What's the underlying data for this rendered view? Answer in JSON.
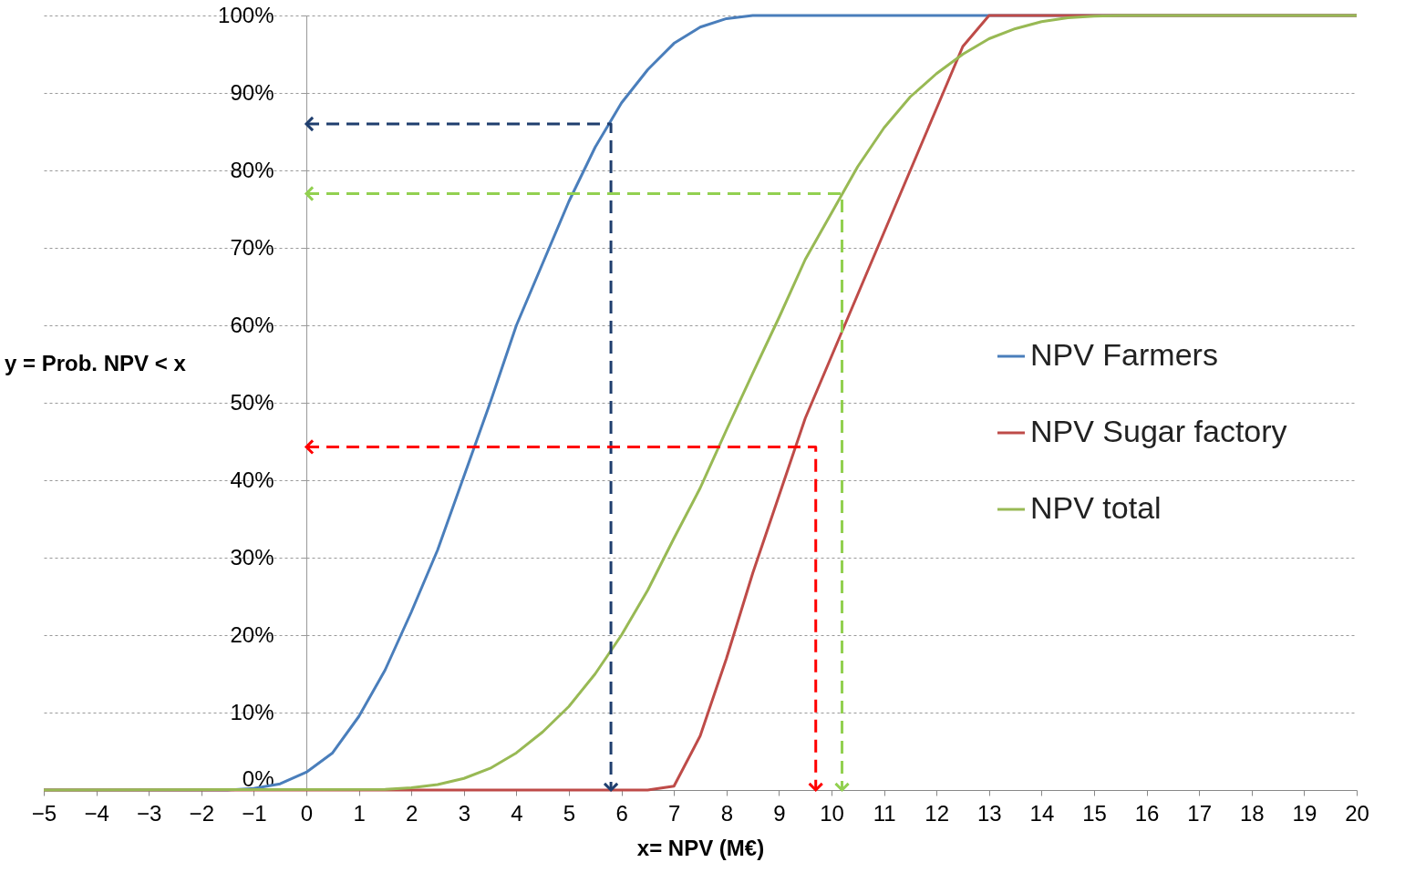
{
  "chart_data": {
    "type": "line",
    "xlabel": "x= NPV (M€)",
    "ylabel": "y = Prob. NPV < x",
    "xlim": [
      -5,
      20
    ],
    "ylim": [
      0,
      100
    ],
    "xticks": [
      -5,
      -4,
      -3,
      -2,
      -1,
      0,
      1,
      2,
      3,
      4,
      5,
      6,
      7,
      8,
      9,
      10,
      11,
      12,
      13,
      14,
      15,
      16,
      17,
      18,
      19,
      20
    ],
    "yticks": [
      {
        "value": 0,
        "label": "0%"
      },
      {
        "value": 10,
        "label": "10%"
      },
      {
        "value": 20,
        "label": "20%"
      },
      {
        "value": 30,
        "label": "30%"
      },
      {
        "value": 40,
        "label": "40%"
      },
      {
        "value": 50,
        "label": "50%"
      },
      {
        "value": 60,
        "label": "60%"
      },
      {
        "value": 70,
        "label": "70%"
      },
      {
        "value": 80,
        "label": "80%"
      },
      {
        "value": 90,
        "label": "90%"
      },
      {
        "value": 100,
        "label": "100%"
      }
    ],
    "grid": "y",
    "legend": "right",
    "marker": "none",
    "line_style": "solid",
    "series": [
      {
        "name": "NPV Farmers",
        "color": "#4a7ebb",
        "x": [
          -5,
          -1.5,
          -1,
          -0.5,
          0,
          0.5,
          1,
          1.5,
          2,
          2.5,
          3,
          3.5,
          4,
          4.5,
          5,
          5.5,
          6,
          6.5,
          7,
          7.5,
          8,
          8.5,
          20
        ],
        "values": [
          0,
          0,
          0.2,
          0.8,
          2.3,
          4.8,
          9.5,
          15.5,
          23,
          31,
          40.5,
          50,
          60,
          68,
          76,
          83,
          88.7,
          93,
          96.4,
          98.5,
          99.6,
          100,
          100
        ]
      },
      {
        "name": "NPV Sugar factory",
        "color": "#be4b48",
        "x": [
          -5,
          6.5,
          7,
          7.5,
          8,
          8.5,
          9,
          9.5,
          10,
          10.5,
          11,
          11.5,
          12,
          12.5,
          13,
          20
        ],
        "values": [
          0,
          0,
          0.5,
          7,
          17,
          28,
          38,
          48,
          56,
          64,
          72,
          80,
          88,
          96,
          100,
          100
        ]
      },
      {
        "name": "NPV total",
        "color": "#98b954",
        "x": [
          -5,
          1.5,
          2,
          2.5,
          3,
          3.5,
          4,
          4.5,
          5,
          5.5,
          6,
          6.5,
          7,
          7.5,
          8,
          8.5,
          9,
          9.5,
          10,
          10.5,
          11,
          11.5,
          12,
          12.5,
          13,
          13.5,
          14,
          14.5,
          15,
          15.5,
          20
        ],
        "values": [
          0,
          0.1,
          0.3,
          0.7,
          1.5,
          2.8,
          4.8,
          7.5,
          10.8,
          15,
          20,
          25.8,
          32.5,
          39,
          46.5,
          53.8,
          61,
          68.5,
          74.5,
          80.5,
          85.5,
          89.5,
          92.5,
          95,
          97,
          98.3,
          99.2,
          99.7,
          99.9,
          100,
          100
        ]
      },
      {
        "color": "#1f3e6e",
        "line_style": "dashed",
        "x": [
          0,
          5.8,
          5.8
        ],
        "values": [
          86,
          86,
          0
        ]
      },
      {
        "color": "#92d050",
        "line_style": "dashed",
        "x": [
          0,
          10.2,
          10.2
        ],
        "values": [
          77,
          77,
          0
        ]
      },
      {
        "color": "#ff0000",
        "line_style": "dashed",
        "x": [
          0,
          9.7,
          9.7
        ],
        "values": [
          44.3,
          44.3,
          0
        ]
      }
    ]
  }
}
